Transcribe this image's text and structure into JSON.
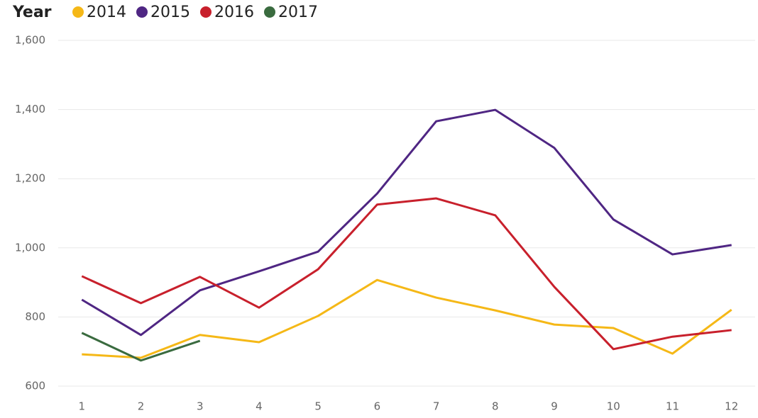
{
  "chart_data": {
    "type": "line",
    "legend_title": "Year",
    "x": [
      1,
      2,
      3,
      4,
      5,
      6,
      7,
      8,
      9,
      10,
      11,
      12
    ],
    "series": [
      {
        "name": "2014",
        "color": "#f5b817",
        "values": [
          692,
          682,
          748,
          727,
          803,
          907,
          856,
          819,
          778,
          768,
          694,
          821
        ]
      },
      {
        "name": "2015",
        "color": "#4f2683",
        "values": [
          850,
          748,
          877,
          932,
          989,
          1157,
          1366,
          1399,
          1289,
          1082,
          981,
          1008
        ]
      },
      {
        "name": "2016",
        "color": "#c8202c",
        "values": [
          918,
          840,
          916,
          827,
          938,
          1125,
          1143,
          1094,
          887,
          707,
          743,
          762
        ]
      },
      {
        "name": "2017",
        "color": "#3a6b3f",
        "values": [
          754,
          674,
          731,
          null,
          null,
          null,
          null,
          null,
          null,
          null,
          null,
          null
        ]
      }
    ],
    "xlim": [
      0.6,
      12.4
    ],
    "xticks": [
      1,
      2,
      3,
      4,
      5,
      6,
      7,
      8,
      9,
      10,
      11,
      12
    ],
    "ylim": [
      600,
      1600
    ],
    "yticks": [
      600,
      800,
      {
        "value": 1000,
        "label": "1,000"
      },
      {
        "value": 1200,
        "label": "1,200"
      },
      {
        "value": 1400,
        "label": "1,400"
      },
      {
        "value": 1600,
        "label": "1,600"
      }
    ],
    "grid": true,
    "legend": "top-left"
  }
}
